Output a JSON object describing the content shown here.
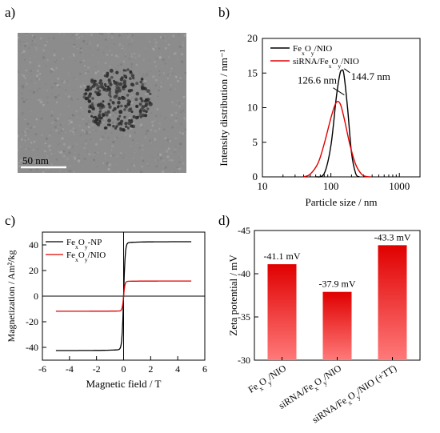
{
  "panel_labels": {
    "a": "a)",
    "b": "b)",
    "c": "c)",
    "d": "d)"
  },
  "tem": {
    "scale_bar_label": "50 nm",
    "colors": {
      "bg": "#8c8c8c",
      "particle": "#2b2b2b"
    }
  },
  "chart_data": [
    {
      "id": "b",
      "type": "line",
      "xlabel": "Particle size / nm",
      "ylabel": "Intensity distribution / nm⁻¹",
      "xscale": "log",
      "xlim": [
        10,
        2000
      ],
      "ylim": [
        0,
        20
      ],
      "x_ticks": [
        10,
        100,
        1000
      ],
      "y_ticks": [
        0,
        5,
        10,
        15,
        20
      ],
      "legend_position": "top-left",
      "series": [
        {
          "name": "FexOy/NIO",
          "name_main": "Fe",
          "name_sub1": "x",
          "name_mid": "O",
          "name_sub2": "y",
          "name_tail": "/NIO",
          "color": "#000000",
          "x": [
            60,
            80,
            100,
            120,
            135,
            144.7,
            155,
            175,
            200,
            230,
            260
          ],
          "y": [
            0,
            0.5,
            4.5,
            11.5,
            14.8,
            15.4,
            14.8,
            10.0,
            3.5,
            0.5,
            0
          ]
        },
        {
          "name": "siRNA/FexOy/NIO",
          "name_main": "siRNA/Fe",
          "name_sub1": "x",
          "name_mid": "O",
          "name_sub2": "y",
          "name_tail": "/NIO",
          "color": "#e00000",
          "x": [
            40,
            50,
            65,
            80,
            100,
            115,
            126.6,
            140,
            160,
            190,
            230,
            280,
            330,
            380
          ],
          "y": [
            0,
            0.4,
            2.0,
            4.8,
            8.5,
            10.4,
            10.9,
            10.3,
            8.0,
            4.6,
            1.8,
            0.4,
            0.05,
            0
          ]
        }
      ],
      "annotations": [
        {
          "text": "126.6 nm",
          "x": 126.6,
          "y": 10.9
        },
        {
          "text": "144.7 nm",
          "x": 144.7,
          "y": 15.4
        }
      ]
    },
    {
      "id": "c",
      "type": "line",
      "xlabel": "Magnetic field / T",
      "ylabel": "Magnetization / Am²/kg",
      "xlim": [
        -6,
        6
      ],
      "ylim": [
        -50,
        50
      ],
      "x_ticks": [
        -6,
        -4,
        -2,
        0,
        2,
        4,
        6
      ],
      "y_ticks": [
        -40,
        -20,
        0,
        20,
        40
      ],
      "legend_position": "top-left",
      "series": [
        {
          "name": "FexOy-NP",
          "name_main": "Fe",
          "name_sub1": "x",
          "name_mid": "O",
          "name_sub2": "y",
          "name_tail": "-NP",
          "color": "#000000",
          "ms": 42.5,
          "h0": 0.12,
          "sign_width": 1
        },
        {
          "name": "FexOy/NIO",
          "name_main": "Fe",
          "name_sub1": "x",
          "name_mid": "O",
          "name_sub2": "y",
          "name_tail": "/NIO",
          "color": "#e00000",
          "ms": 11.8,
          "h0": 0.1,
          "sign_width": 1
        }
      ]
    },
    {
      "id": "d",
      "type": "bar",
      "ylabel": "Zeta potential / mV",
      "ylim": [
        -30,
        -45
      ],
      "y_ticks": [
        -30,
        -35,
        -40,
        -45
      ],
      "categories": [
        "FexOy/NIO",
        "siRNA/FexOy/NIO",
        "siRNA/FexOy/NIO (+TT)"
      ],
      "category_parts": [
        {
          "a": "Fe",
          "s1": "x",
          "b": "O",
          "s2": "y",
          "c": "/NIO"
        },
        {
          "a": "siRNA/Fe",
          "s1": "x",
          "b": "O",
          "s2": "y",
          "c": "/NIO"
        },
        {
          "a": "siRNA/Fe",
          "s1": "x",
          "b": "O",
          "s2": "y",
          "c": "/NIO (+TT)"
        }
      ],
      "values": [
        -41.1,
        -37.9,
        -43.3
      ],
      "value_labels": [
        "-41.1 mV",
        "-37.9 mV",
        "-43.3 mV"
      ],
      "bar_color_top": "#e00000",
      "bar_color_bottom": "#ff7a7a"
    }
  ]
}
